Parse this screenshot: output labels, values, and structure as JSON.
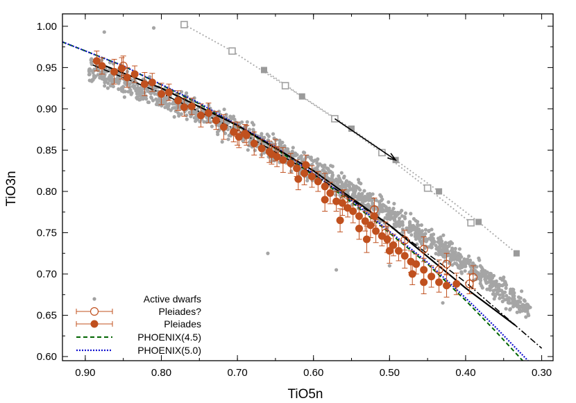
{
  "chart_data": {
    "type": "scatter",
    "title": "",
    "xlabel": "TiO5n",
    "ylabel": "TiO3n",
    "xlim": [
      0.93,
      0.285
    ],
    "ylim": [
      0.595,
      1.015
    ],
    "x_reversed": true,
    "xticks": [
      "0.90",
      "0.80",
      "0.70",
      "0.60",
      "0.50",
      "0.40",
      "0.30"
    ],
    "yticks": [
      "1.00",
      "0.95",
      "0.90",
      "0.85",
      "0.80",
      "0.75",
      "0.70",
      "0.65",
      "0.60"
    ],
    "legend_position": "bottom-left",
    "legend": [
      {
        "label": "Active dwarfs",
        "marker": "dot",
        "color": "#a0a0a0"
      },
      {
        "label": "Pleiades?",
        "marker": "open-circle-errorbar",
        "color": "#c0501e"
      },
      {
        "label": "Pleiades",
        "marker": "filled-circle-errorbar",
        "color": "#c0501e"
      },
      {
        "label": "PHOENIX(4.5)",
        "marker": "dashed-line",
        "color": "#006400"
      },
      {
        "label": "PHOENIX(5.0)",
        "marker": "dotted-line",
        "color": "#1010d0"
      }
    ],
    "series": [
      {
        "name": "PHOENIX(4.5)",
        "style": "dashed",
        "color": "#006400",
        "x": [
          0.93,
          0.85,
          0.75,
          0.65,
          0.55,
          0.45,
          0.4,
          0.36,
          0.325
        ],
        "y": [
          0.981,
          0.952,
          0.906,
          0.852,
          0.787,
          0.712,
          0.668,
          0.63,
          0.595
        ]
      },
      {
        "name": "PHOENIX(5.0)",
        "style": "dotted",
        "color": "#1010d0",
        "x": [
          0.93,
          0.85,
          0.75,
          0.65,
          0.55,
          0.45,
          0.4,
          0.36,
          0.318
        ],
        "y": [
          0.981,
          0.952,
          0.907,
          0.854,
          0.789,
          0.714,
          0.671,
          0.635,
          0.595
        ]
      },
      {
        "style": "solid-black",
        "color": "#000000",
        "x": [
          0.89,
          0.8,
          0.7,
          0.6,
          0.5,
          0.4,
          0.335
        ],
        "y": [
          0.958,
          0.925,
          0.88,
          0.825,
          0.759,
          0.683,
          0.638
        ]
      },
      {
        "style": "dashdot-black",
        "color": "#000000",
        "x": [
          0.89,
          0.8,
          0.7,
          0.6,
          0.5,
          0.4,
          0.3
        ],
        "y": [
          0.953,
          0.919,
          0.874,
          0.821,
          0.759,
          0.69,
          0.61
        ]
      },
      {
        "style": "gray-open-squares",
        "color": "#a0a0a0",
        "x": [
          0.77,
          0.707,
          0.637,
          0.572,
          0.51,
          0.45,
          0.393
        ],
        "y": [
          1.002,
          0.97,
          0.928,
          0.888,
          0.847,
          0.804,
          0.762
        ]
      },
      {
        "style": "gray-filled-squares",
        "color": "#a0a0a0",
        "x": [
          0.665,
          0.615,
          0.55,
          0.492,
          0.435,
          0.383,
          0.333
        ],
        "y": [
          0.947,
          0.915,
          0.876,
          0.838,
          0.8,
          0.763,
          0.725
        ]
      }
    ],
    "arrow": {
      "from": [
        0.572,
        0.888
      ],
      "to": [
        0.492,
        0.838
      ],
      "color": "#000000"
    },
    "pleiades": [
      [
        0.885,
        0.958,
        0.012
      ],
      [
        0.878,
        0.952,
        0.01
      ],
      [
        0.862,
        0.945,
        0.015
      ],
      [
        0.852,
        0.949,
        0.013
      ],
      [
        0.845,
        0.938,
        0.012
      ],
      [
        0.835,
        0.942,
        0.01
      ],
      [
        0.822,
        0.93,
        0.014
      ],
      [
        0.812,
        0.932,
        0.011
      ],
      [
        0.8,
        0.918,
        0.013
      ],
      [
        0.79,
        0.92,
        0.01
      ],
      [
        0.778,
        0.91,
        0.012
      ],
      [
        0.77,
        0.902,
        0.011
      ],
      [
        0.76,
        0.903,
        0.01
      ],
      [
        0.748,
        0.892,
        0.014
      ],
      [
        0.738,
        0.895,
        0.012
      ],
      [
        0.728,
        0.886,
        0.011
      ],
      [
        0.718,
        0.878,
        0.015
      ],
      [
        0.705,
        0.872,
        0.012
      ],
      [
        0.698,
        0.866,
        0.013
      ],
      [
        0.688,
        0.868,
        0.012
      ],
      [
        0.678,
        0.858,
        0.014
      ],
      [
        0.668,
        0.852,
        0.011
      ],
      [
        0.658,
        0.848,
        0.013
      ],
      [
        0.648,
        0.842,
        0.012
      ],
      [
        0.64,
        0.838,
        0.015
      ],
      [
        0.63,
        0.834,
        0.012
      ],
      [
        0.622,
        0.828,
        0.01
      ],
      [
        0.612,
        0.822,
        0.014
      ],
      [
        0.602,
        0.818,
        0.013
      ],
      [
        0.594,
        0.812,
        0.012
      ],
      [
        0.585,
        0.806,
        0.016
      ],
      [
        0.578,
        0.798,
        0.013
      ],
      [
        0.57,
        0.788,
        0.012
      ],
      [
        0.562,
        0.786,
        0.015
      ],
      [
        0.555,
        0.78,
        0.011
      ],
      [
        0.548,
        0.776,
        0.014
      ],
      [
        0.54,
        0.77,
        0.013
      ],
      [
        0.532,
        0.764,
        0.012
      ],
      [
        0.525,
        0.759,
        0.015
      ],
      [
        0.518,
        0.752,
        0.014
      ],
      [
        0.51,
        0.746,
        0.012
      ],
      [
        0.503,
        0.742,
        0.016
      ],
      [
        0.495,
        0.735,
        0.013
      ],
      [
        0.488,
        0.728,
        0.012
      ],
      [
        0.48,
        0.722,
        0.015
      ],
      [
        0.472,
        0.715,
        0.013
      ],
      [
        0.465,
        0.712,
        0.012
      ],
      [
        0.455,
        0.705,
        0.014
      ],
      [
        0.445,
        0.697,
        0.013
      ],
      [
        0.435,
        0.69,
        0.012
      ],
      [
        0.425,
        0.686,
        0.014
      ],
      [
        0.412,
        0.688,
        0.013
      ],
      [
        0.565,
        0.765,
        0.014
      ],
      [
        0.54,
        0.755,
        0.013
      ],
      [
        0.52,
        0.77,
        0.012
      ],
      [
        0.5,
        0.728,
        0.015
      ],
      [
        0.62,
        0.815,
        0.013
      ],
      [
        0.655,
        0.845,
        0.012
      ],
      [
        0.585,
        0.79,
        0.014
      ],
      [
        0.47,
        0.7,
        0.013
      ],
      [
        0.69,
        0.87,
        0.011
      ],
      [
        0.61,
        0.832,
        0.012
      ],
      [
        0.53,
        0.742,
        0.016
      ],
      [
        0.455,
        0.69,
        0.014
      ]
    ],
    "pleiades_uncertain": [
      [
        0.85,
        0.952,
        0.012
      ],
      [
        0.7,
        0.87,
        0.014
      ],
      [
        0.65,
        0.85,
        0.013
      ],
      [
        0.56,
        0.79,
        0.012
      ],
      [
        0.52,
        0.778,
        0.014
      ],
      [
        0.505,
        0.75,
        0.013
      ],
      [
        0.48,
        0.741,
        0.012
      ],
      [
        0.455,
        0.73,
        0.015
      ],
      [
        0.435,
        0.705,
        0.012
      ],
      [
        0.425,
        0.712,
        0.013
      ],
      [
        0.395,
        0.688,
        0.012
      ],
      [
        0.39,
        0.696,
        0.014
      ]
    ]
  }
}
